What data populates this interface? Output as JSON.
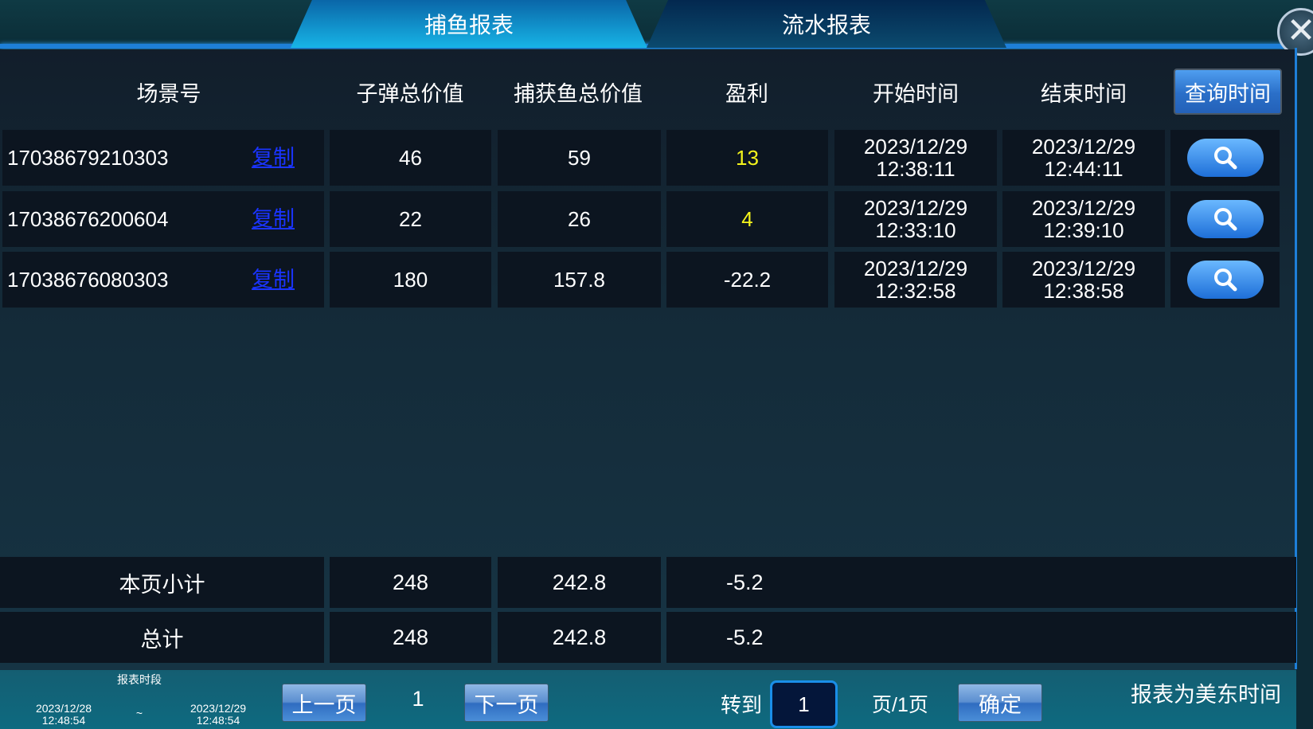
{
  "tabs": [
    {
      "label": "捕鱼报表",
      "active": true
    },
    {
      "label": "流水报表",
      "active": false
    }
  ],
  "close_icon": "close-x-icon",
  "headers": [
    "场景号",
    "子弹总价值",
    "捕获鱼总价值",
    "盈利",
    "开始时间",
    "结束时间"
  ],
  "query_time_label": "查询时间",
  "copy_label": "复制",
  "rows": [
    {
      "scene": "17038679210303",
      "bullet": "46",
      "catch": "59",
      "profit": "13",
      "profit_positive": true,
      "start_date": "2023/12/29",
      "start_time": "12:38:11",
      "end_date": "2023/12/29",
      "end_time": "12:44:11"
    },
    {
      "scene": "17038676200604",
      "bullet": "22",
      "catch": "26",
      "profit": "4",
      "profit_positive": true,
      "start_date": "2023/12/29",
      "start_time": "12:33:10",
      "end_date": "2023/12/29",
      "end_time": "12:39:10"
    },
    {
      "scene": "17038676080303",
      "bullet": "180",
      "catch": "157.8",
      "profit": "-22.2",
      "profit_positive": false,
      "start_date": "2023/12/29",
      "start_time": "12:32:58",
      "end_date": "2023/12/29",
      "end_time": "12:38:58"
    }
  ],
  "summary": [
    {
      "label": "本页小计",
      "bullet": "248",
      "catch": "242.8",
      "profit": "-5.2"
    },
    {
      "label": "总计",
      "bullet": "248",
      "catch": "242.8",
      "profit": "-5.2"
    }
  ],
  "footer": {
    "period_label": "报表时段",
    "from_date": "2023/12/28",
    "from_time": "12:48:54",
    "separator": "~",
    "to_date": "2023/12/29",
    "to_time": "12:48:54",
    "prev_label": "上一页",
    "page": "1",
    "next_label": "下一页",
    "goto_label": "转到",
    "goto_value": "1",
    "pages_label": "页/1页",
    "confirm_label": "确定",
    "timezone_note": "报表为美东时间"
  },
  "colors": {
    "accent": "#1e7fd8",
    "profit_positive": "#f4f41c",
    "copy_link": "#1a34ff"
  }
}
